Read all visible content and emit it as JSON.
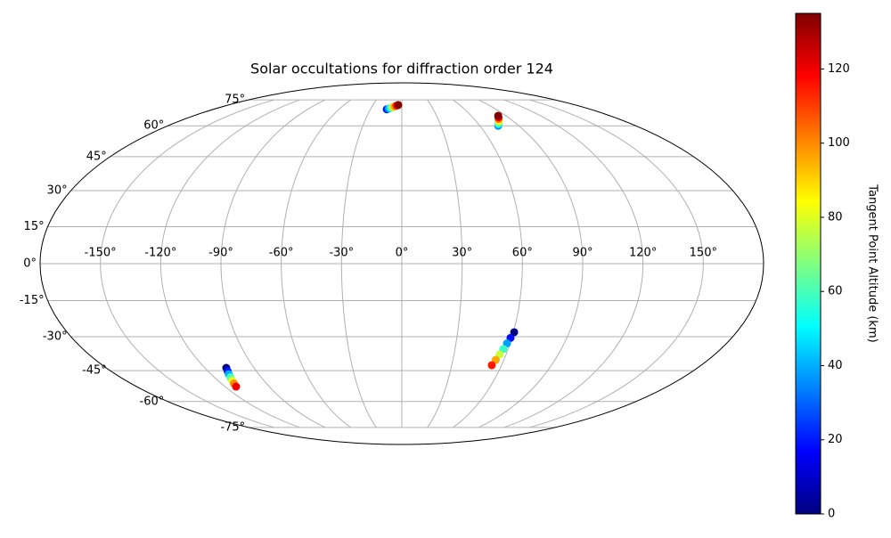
{
  "chart_data": {
    "type": "scatter",
    "projection": "mollweide",
    "title": "Solar occultations for diffraction order 124",
    "xlim": [
      -180,
      180
    ],
    "ylim": [
      -90,
      90
    ],
    "xticks": [
      {
        "value": -150,
        "label": "-150°"
      },
      {
        "value": -120,
        "label": "-120°"
      },
      {
        "value": -90,
        "label": "-90°"
      },
      {
        "value": -60,
        "label": "-60°"
      },
      {
        "value": -30,
        "label": "-30°"
      },
      {
        "value": 0,
        "label": "0°"
      },
      {
        "value": 30,
        "label": "30°"
      },
      {
        "value": 60,
        "label": "60°"
      },
      {
        "value": 90,
        "label": "90°"
      },
      {
        "value": 120,
        "label": "120°"
      },
      {
        "value": 150,
        "label": "150°"
      }
    ],
    "yticks": [
      {
        "value": -75,
        "label": "-75°"
      },
      {
        "value": -60,
        "label": "-60°"
      },
      {
        "value": -45,
        "label": "-45°"
      },
      {
        "value": -30,
        "label": "-30°"
      },
      {
        "value": -15,
        "label": "-15°"
      },
      {
        "value": 0,
        "label": "0°"
      },
      {
        "value": 15,
        "label": "15°"
      },
      {
        "value": 30,
        "label": "30°"
      },
      {
        "value": 45,
        "label": "45°"
      },
      {
        "value": 60,
        "label": "60°"
      },
      {
        "value": 75,
        "label": "75°"
      }
    ],
    "grid": true,
    "colormap": "jet",
    "colorbar": {
      "label": "Tangent Point Altitude (km)",
      "clim": [
        0,
        135
      ],
      "ticks": [
        0,
        20,
        40,
        60,
        80,
        100,
        120
      ]
    },
    "x": [
      -14.4,
      -12.6,
      -10.8,
      -9.0,
      -7.3,
      -5.5,
      -3.7,
      74.1,
      75.6,
      77.2,
      78.7,
      80.2,
      81.8,
      83.3,
      -106.9,
      -107.8,
      -108.8,
      -109.7,
      -110.6,
      -111.6,
      -112.5,
      60.4,
      59.3,
      58.3,
      57.3,
      56.2,
      55.2,
      54.1
    ],
    "y": [
      69.1,
      69.5,
      70.0,
      70.4,
      70.8,
      71.3,
      71.7,
      60.0,
      60.9,
      61.8,
      62.7,
      63.6,
      64.5,
      65.4,
      -43.7,
      -45.2,
      -46.6,
      -48.1,
      -49.6,
      -51.0,
      -52.5,
      -28.1,
      -30.5,
      -32.9,
      -35.3,
      -37.7,
      -40.1,
      -42.5
    ],
    "c": [
      20,
      39,
      58,
      77,
      96,
      115,
      134,
      35,
      52,
      68,
      85,
      102,
      118,
      135,
      0,
      20,
      40,
      60,
      80,
      100,
      120,
      0,
      19,
      38,
      58,
      77,
      96,
      115
    ]
  }
}
